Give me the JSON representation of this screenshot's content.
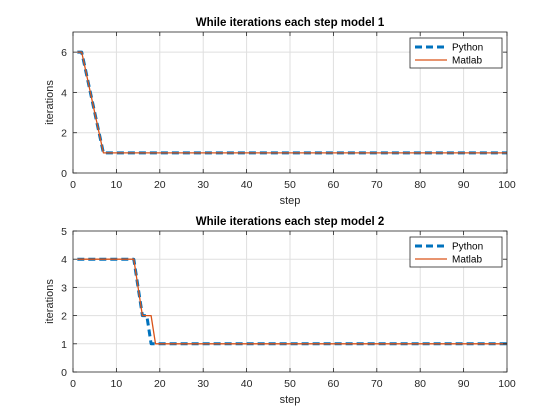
{
  "chart_data": [
    {
      "type": "line",
      "title": "While iterations each step model 1",
      "xlabel": "step",
      "ylabel": "iterations",
      "xlim": [
        0,
        100
      ],
      "ylim": [
        0,
        7
      ],
      "xticks": [
        0,
        10,
        20,
        30,
        40,
        50,
        60,
        70,
        80,
        90,
        100
      ],
      "yticks": [
        0,
        2,
        4,
        6
      ],
      "grid": true,
      "legend_position": "top-right",
      "series": [
        {
          "name": "Python",
          "style": "dashed",
          "color": "#0072BD",
          "x": [
            1,
            2,
            7,
            100
          ],
          "y": [
            6,
            6,
            1,
            1
          ]
        },
        {
          "name": "Matlab",
          "style": "solid",
          "color": "#D95319",
          "x": [
            1,
            2,
            7,
            100
          ],
          "y": [
            6,
            6,
            1,
            1
          ]
        }
      ]
    },
    {
      "type": "line",
      "title": "While iterations each step model 2",
      "xlabel": "step",
      "ylabel": "iterations",
      "xlim": [
        0,
        100
      ],
      "ylim": [
        0,
        5
      ],
      "xticks": [
        0,
        10,
        20,
        30,
        40,
        50,
        60,
        70,
        80,
        90,
        100
      ],
      "yticks": [
        0,
        1,
        2,
        3,
        4,
        5
      ],
      "grid": true,
      "legend_position": "top-right",
      "series": [
        {
          "name": "Python",
          "style": "dashed",
          "color": "#0072BD",
          "x": [
            1,
            14,
            16,
            17,
            18,
            100
          ],
          "y": [
            4,
            4,
            2,
            2,
            1,
            1
          ]
        },
        {
          "name": "Matlab",
          "style": "solid",
          "color": "#D95319",
          "x": [
            1,
            14,
            16,
            18,
            19,
            100
          ],
          "y": [
            4,
            4,
            2,
            2,
            1,
            1
          ]
        }
      ]
    }
  ]
}
